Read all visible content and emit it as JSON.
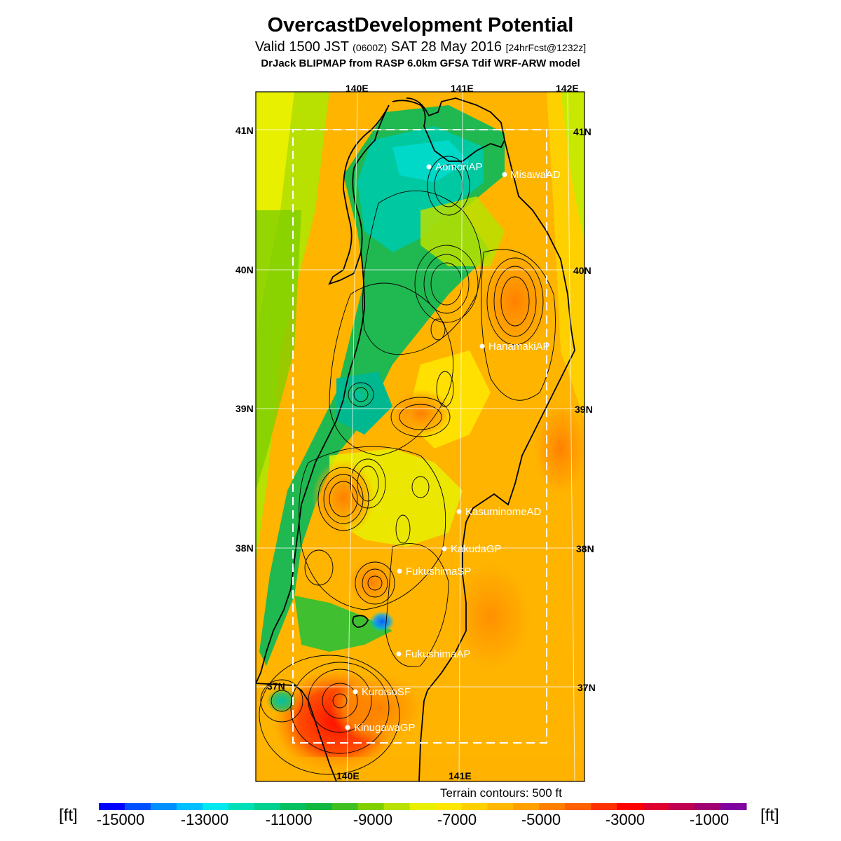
{
  "title": "OvercastDevelopment Potential",
  "subtitle": {
    "prefix": "Valid 1500 JST ",
    "utc": "(0600Z)",
    "date": " SAT 28 May 2016 ",
    "forecast": "[24hrFcst@1232z]"
  },
  "model_line": "DrJack BLIPMAP from RASP 6.0km GFSA Tdif WRF-ARW model",
  "map": {
    "top_lon_labels": [
      "140E",
      "141E",
      "142E"
    ],
    "bottom_lon_labels": [
      "140E",
      "141E"
    ],
    "left_lat_labels": [
      "41N",
      "40N",
      "39N",
      "38N",
      "37N"
    ],
    "right_lat_labels": [
      "41N",
      "40N",
      "39N",
      "38N",
      "37N"
    ],
    "stations": [
      {
        "name": "AomoriAP"
      },
      {
        "name": "MisawaAD"
      },
      {
        "name": "HanamakiAP"
      },
      {
        "name": "KasuminomeAD"
      },
      {
        "name": "KakudaGP"
      },
      {
        "name": "FukushimaSP"
      },
      {
        "name": "FukushimaAP"
      },
      {
        "name": "KuroisoSF"
      },
      {
        "name": "KinugawaGP"
      }
    ]
  },
  "terrain_note": "Terrain contours: 500 ft",
  "colorbar": {
    "unit": "[ft]",
    "labels": [
      "-15000",
      "-13000",
      "-11000",
      "-9000",
      "-7000",
      "-5000",
      "-3000",
      "-1000"
    ],
    "colors": [
      "#0000ff",
      "#0050ff",
      "#0090ff",
      "#00c0ff",
      "#00e8f0",
      "#00e0b8",
      "#00d090",
      "#00c060",
      "#10b840",
      "#40c020",
      "#80d000",
      "#b8e000",
      "#e8f000",
      "#ffe800",
      "#ffd000",
      "#ffb800",
      "#ffa000",
      "#ff8000",
      "#ff6000",
      "#ff3000",
      "#ff0000",
      "#e00030",
      "#c00050",
      "#a00070",
      "#8000a0"
    ]
  }
}
